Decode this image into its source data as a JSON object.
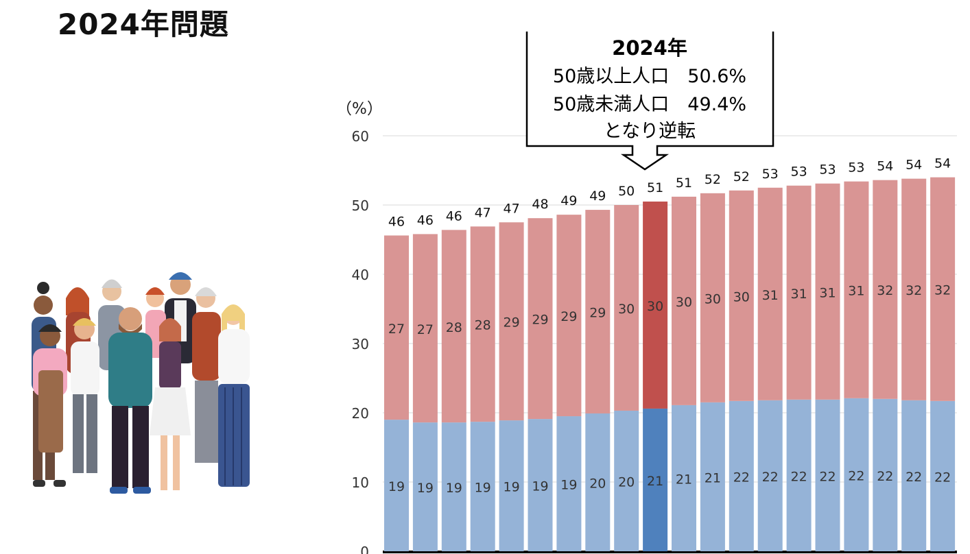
{
  "page": {
    "title": "2024年問題"
  },
  "callout": {
    "line1": "2024年",
    "line2": "50歳以上人口　50.6%",
    "line3": "50歳未満人口　49.4%",
    "line4": "となり逆転"
  },
  "chart_data": {
    "type": "bar",
    "stacked": true,
    "y_unit": "（%）",
    "ylim": [
      0,
      60
    ],
    "y_ticks": [
      0,
      10,
      20,
      30,
      40,
      50,
      60
    ],
    "grid": true,
    "highlight_index": 9,
    "colors": {
      "lower": "#95b3d7",
      "upper": "#d99594",
      "lower_highlight": "#4f81bd",
      "upper_highlight": "#c0504d"
    },
    "series": [
      {
        "values": [
          19,
          18.6,
          18.6,
          18.7,
          18.9,
          19.1,
          19.5,
          19.9,
          20.3,
          20.6,
          21.1,
          21.5,
          21.7,
          21.8,
          21.9,
          21.9,
          22.1,
          22.0,
          21.8,
          21.7
        ]
      },
      {
        "values": [
          26.6,
          27.2,
          27.8,
          28.2,
          28.6,
          29.0,
          29.1,
          29.4,
          29.7,
          29.9,
          30.1,
          30.2,
          30.4,
          30.7,
          30.9,
          31.2,
          31.3,
          31.6,
          32.0,
          32.3
        ]
      }
    ],
    "lower_labels": [
      "19",
      "19",
      "19",
      "19",
      "19",
      "19",
      "19",
      "20",
      "20",
      "21",
      "21",
      "21",
      "22",
      "22",
      "22",
      "22",
      "22",
      "22",
      "22",
      "22"
    ],
    "upper_labels": [
      "27",
      "27",
      "28",
      "28",
      "29",
      "29",
      "29",
      "29",
      "30",
      "30",
      "30",
      "30",
      "30",
      "31",
      "31",
      "31",
      "31",
      "32",
      "32",
      "32"
    ],
    "total_labels": [
      "46",
      "46",
      "46",
      "47",
      "47",
      "48",
      "49",
      "49",
      "50",
      "51",
      "51",
      "52",
      "52",
      "53",
      "53",
      "53",
      "53",
      "54",
      "54",
      "54"
    ]
  },
  "icons": {
    "illustration": "group-of-people-illustration",
    "arrow": "down-arrow-icon"
  }
}
